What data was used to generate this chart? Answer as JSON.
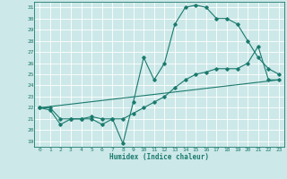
{
  "xlabel": "Humidex (Indice chaleur)",
  "background_color": "#cde8e8",
  "line_color": "#1a7a6e",
  "grid_color": "#ffffff",
  "xlim": [
    -0.5,
    23.5
  ],
  "ylim": [
    18.5,
    31.5
  ],
  "xticks": [
    0,
    1,
    2,
    3,
    4,
    5,
    6,
    7,
    8,
    9,
    10,
    11,
    12,
    13,
    14,
    15,
    16,
    17,
    18,
    19,
    20,
    21,
    22,
    23
  ],
  "yticks": [
    19,
    20,
    21,
    22,
    23,
    24,
    25,
    26,
    27,
    28,
    29,
    30,
    31
  ],
  "line1_x": [
    0,
    1,
    2,
    3,
    4,
    5,
    6,
    7,
    8,
    9,
    10,
    11,
    12,
    13,
    14,
    15,
    16,
    17,
    18,
    19,
    20,
    21,
    22,
    23
  ],
  "line1_y": [
    22,
    22,
    21,
    21,
    21,
    21,
    20.5,
    21,
    18.8,
    22.5,
    26.5,
    24.5,
    26,
    29.5,
    31,
    31.2,
    31,
    30,
    30,
    29.5,
    28,
    26.5,
    25.5,
    25
  ],
  "line2_x": [
    0,
    1,
    2,
    3,
    4,
    5,
    6,
    7,
    8,
    9,
    10,
    11,
    12,
    13,
    14,
    15,
    16,
    17,
    18,
    19,
    20,
    21,
    22,
    23
  ],
  "line2_y": [
    22,
    21.8,
    20.5,
    21,
    21,
    21.2,
    21,
    21,
    21,
    21.5,
    22,
    22.5,
    23,
    23.8,
    24.5,
    25,
    25.2,
    25.5,
    25.5,
    25.5,
    26,
    27.5,
    24.5,
    24.5
  ],
  "line3_x": [
    0,
    23
  ],
  "line3_y": [
    22,
    24.5
  ]
}
